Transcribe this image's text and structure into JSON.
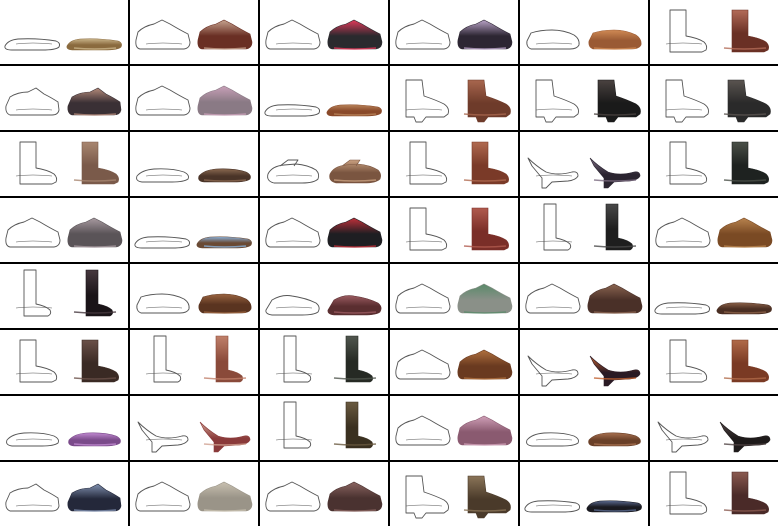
{
  "grid": {
    "rows": 8,
    "cols": 6
  },
  "palette": {
    "background": "#ffffff",
    "divider": "#000000",
    "sketch_stroke": "#555555"
  },
  "pairs": [
    {
      "shoe": "flip-flop-sandal",
      "color": "#8a6a3e",
      "color2": "#c9b48a"
    },
    {
      "shoe": "sneaker",
      "color": "#6a2f24",
      "color2": "#c7a38f"
    },
    {
      "shoe": "sneaker",
      "color": "#2a2a2e",
      "color2": "#e23a5a"
    },
    {
      "shoe": "sneaker",
      "color": "#2d2633",
      "color2": "#b9a3c7"
    },
    {
      "shoe": "loafer",
      "color": "#9a5a34",
      "color2": "#d08a54"
    },
    {
      "shoe": "boot",
      "color": "#6a3025",
      "color2": "#b36b58"
    },
    {
      "shoe": "lace-up-shoe",
      "color": "#3a3035",
      "color2": "#b48a7a"
    },
    {
      "shoe": "sneaker",
      "color": "#8a7a85",
      "color2": "#c9a0b8"
    },
    {
      "shoe": "flip-flop-sandal",
      "color": "#8a4a2a",
      "color2": "#b8835a"
    },
    {
      "shoe": "ankle-boot",
      "color": "#6e3b2a",
      "color2": "#a8664e"
    },
    {
      "shoe": "ankle-boot",
      "color": "#1a1a1a",
      "color2": "#4a4240"
    },
    {
      "shoe": "ankle-boot",
      "color": "#2a2a2a",
      "color2": "#5a5450"
    },
    {
      "shoe": "boot",
      "color": "#7a5a4a",
      "color2": "#a88670"
    },
    {
      "shoe": "ballet-flat",
      "color": "#4a3428",
      "color2": "#8a6850"
    },
    {
      "shoe": "mary-jane",
      "color": "#7a5540",
      "color2": "#c9a080"
    },
    {
      "shoe": "boot",
      "color": "#7a3a28",
      "color2": "#b06a50"
    },
    {
      "shoe": "pump-heel",
      "color": "#2a2430",
      "color2": "#7a6a80"
    },
    {
      "shoe": "boot",
      "color": "#1e2220",
      "color2": "#4a5048"
    },
    {
      "shoe": "sneaker",
      "color": "#5a5458",
      "color2": "#a89aa0"
    },
    {
      "shoe": "flip-flop-sandal",
      "color": "#6a4a34",
      "color2": "#8ab0d8"
    },
    {
      "shoe": "sneaker",
      "color": "#1e1e22",
      "color2": "#c0303a"
    },
    {
      "shoe": "boot",
      "color": "#7a2e28",
      "color2": "#b05a4e"
    },
    {
      "shoe": "tall-boot",
      "color": "#1e1e1e",
      "color2": "#484848"
    },
    {
      "shoe": "sneaker",
      "color": "#7a4a24",
      "color2": "#b8834e"
    },
    {
      "shoe": "tall-boot",
      "color": "#1a1418",
      "color2": "#46383e"
    },
    {
      "shoe": "loafer",
      "color": "#5a3420",
      "color2": "#9a6440"
    },
    {
      "shoe": "sandal",
      "color": "#5a2e30",
      "color2": "#9a5a60"
    },
    {
      "shoe": "sneaker",
      "color": "#8a9088",
      "color2": "#5a8a6a"
    },
    {
      "shoe": "sneaker",
      "color": "#4a3028",
      "color2": "#8a6450"
    },
    {
      "shoe": "flip-flop-sandal",
      "color": "#4a2e22",
      "color2": "#8a6048"
    },
    {
      "shoe": "boot",
      "color": "#3a2a24",
      "color2": "#6a5048"
    },
    {
      "shoe": "tall-boot",
      "color": "#8a4a3a",
      "color2": "#c0806a"
    },
    {
      "shoe": "tall-boot",
      "color": "#262a24",
      "color2": "#50564e"
    },
    {
      "shoe": "sneaker",
      "color": "#6a3a20",
      "color2": "#b0703e"
    },
    {
      "shoe": "pump-heel",
      "color": "#2a1a24",
      "color2": "#c06030"
    },
    {
      "shoe": "boot",
      "color": "#7a3a24",
      "color2": "#b06a48"
    },
    {
      "shoe": "ballet-flat",
      "color": "#7a4a8a",
      "color2": "#c08ad0"
    },
    {
      "shoe": "pump-heel",
      "color": "#8a3a3a",
      "color2": "#d0a090"
    },
    {
      "shoe": "tall-boot",
      "color": "#3a3020",
      "color2": "#6a5a40"
    },
    {
      "shoe": "sneaker",
      "color": "#8a5a70",
      "color2": "#d0a0b8"
    },
    {
      "shoe": "ballet-flat",
      "color": "#6a4028",
      "color2": "#a87050"
    },
    {
      "shoe": "pump-heel",
      "color": "#1e1a1a",
      "color2": "#504444"
    },
    {
      "shoe": "lace-up-shoe",
      "color": "#24283a",
      "color2": "#8090b0"
    },
    {
      "shoe": "sneaker",
      "color": "#9a9488",
      "color2": "#c8c0b0"
    },
    {
      "shoe": "sneaker",
      "color": "#4a3230",
      "color2": "#8a6460"
    },
    {
      "shoe": "ankle-boot",
      "color": "#4a3a2a",
      "color2": "#8a7458"
    },
    {
      "shoe": "flip-flop-sandal",
      "color": "#1a1a20",
      "color2": "#5a6a90"
    },
    {
      "shoe": "boot",
      "color": "#4a2a28",
      "color2": "#8a5a50"
    }
  ]
}
